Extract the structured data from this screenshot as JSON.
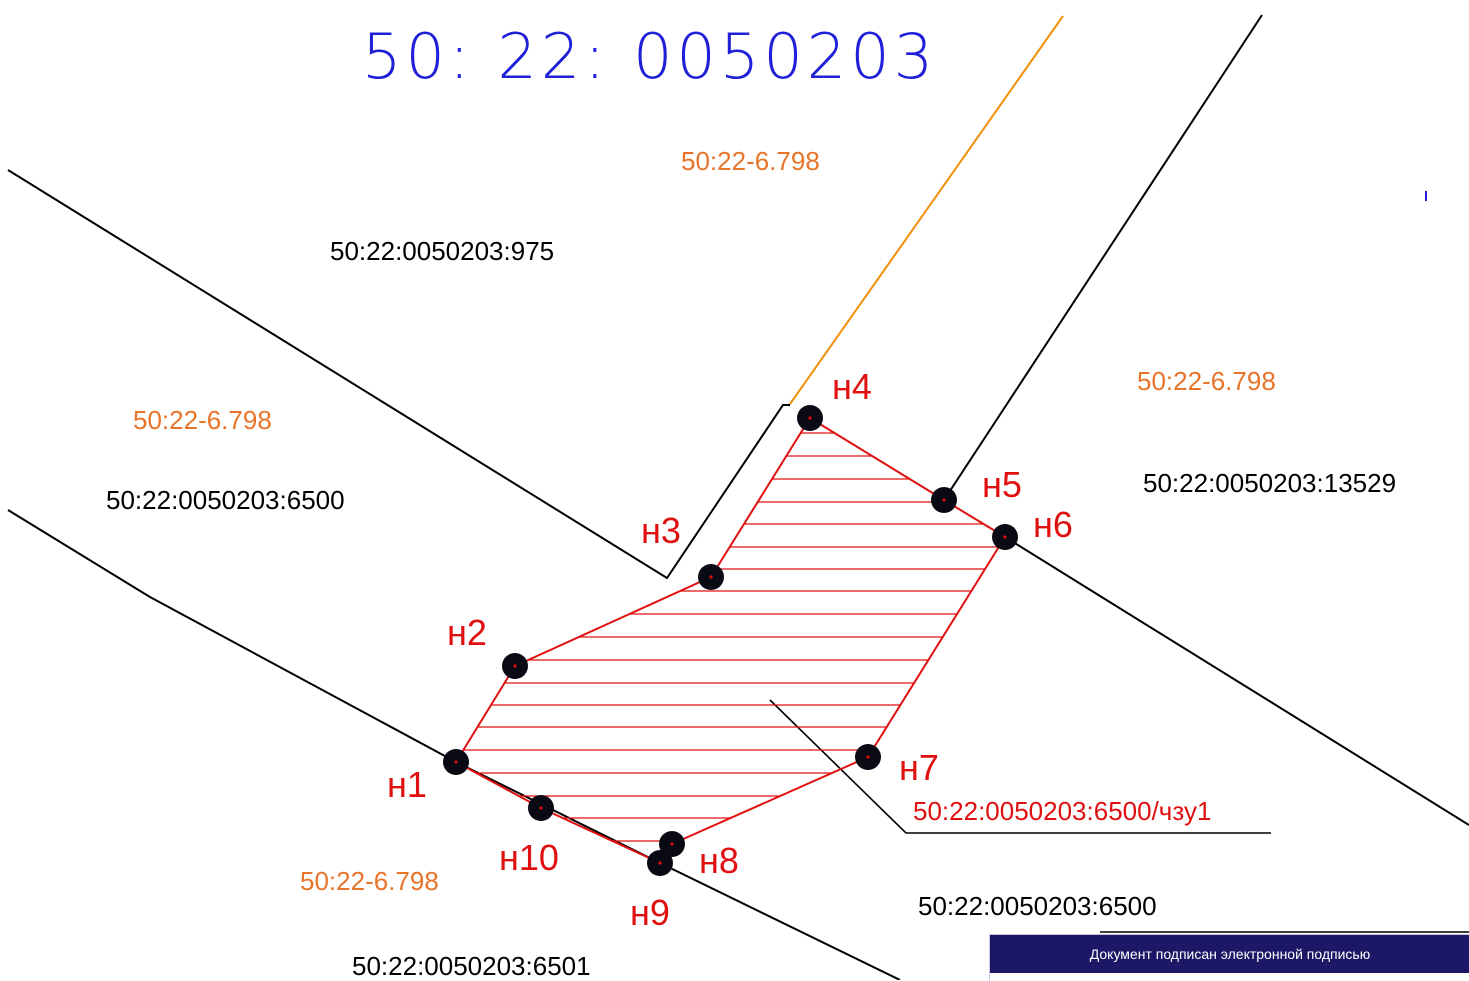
{
  "map": {
    "quarter_number": "50: 22: 0050203",
    "colors": {
      "quarter_title": "#2020d8",
      "boundary": "#000000",
      "zone_boundary": "#f0900a",
      "zone_label": "#e8742a",
      "part_outline": "#e01010",
      "point_label": "#e01010",
      "marker": "#0a0a14"
    },
    "parcel_labels": [
      {
        "id": "parcel-975",
        "text": "50:22:0050203:975"
      },
      {
        "id": "parcel-6500-west",
        "text": "50:22:0050203:6500"
      },
      {
        "id": "parcel-13529",
        "text": "50:22:0050203:13529"
      },
      {
        "id": "parcel-6500-south",
        "text": "50:22:0050203:6500"
      },
      {
        "id": "parcel-6501",
        "text": "50:22:0050203:6501"
      }
    ],
    "zone_labels": [
      {
        "id": "zone-top",
        "text": "50:22-6.798"
      },
      {
        "id": "zone-west",
        "text": "50:22-6.798"
      },
      {
        "id": "zone-east",
        "text": "50:22-6.798"
      },
      {
        "id": "zone-south",
        "text": "50:22-6.798"
      }
    ],
    "part_label": "50:22:0050203:6500/чзу1",
    "points": [
      {
        "id": "n1",
        "label": "н1"
      },
      {
        "id": "n2",
        "label": "н2"
      },
      {
        "id": "n3",
        "label": "н3"
      },
      {
        "id": "n4",
        "label": "н4"
      },
      {
        "id": "n5",
        "label": "н5"
      },
      {
        "id": "n6",
        "label": "н6"
      },
      {
        "id": "n7",
        "label": "н7"
      },
      {
        "id": "n8",
        "label": "н8"
      },
      {
        "id": "n9",
        "label": "н9"
      },
      {
        "id": "n10",
        "label": "н10"
      }
    ]
  },
  "signature_stamp": {
    "header": "Документ подписан электронной подписью",
    "header_color": "#1c1766"
  }
}
